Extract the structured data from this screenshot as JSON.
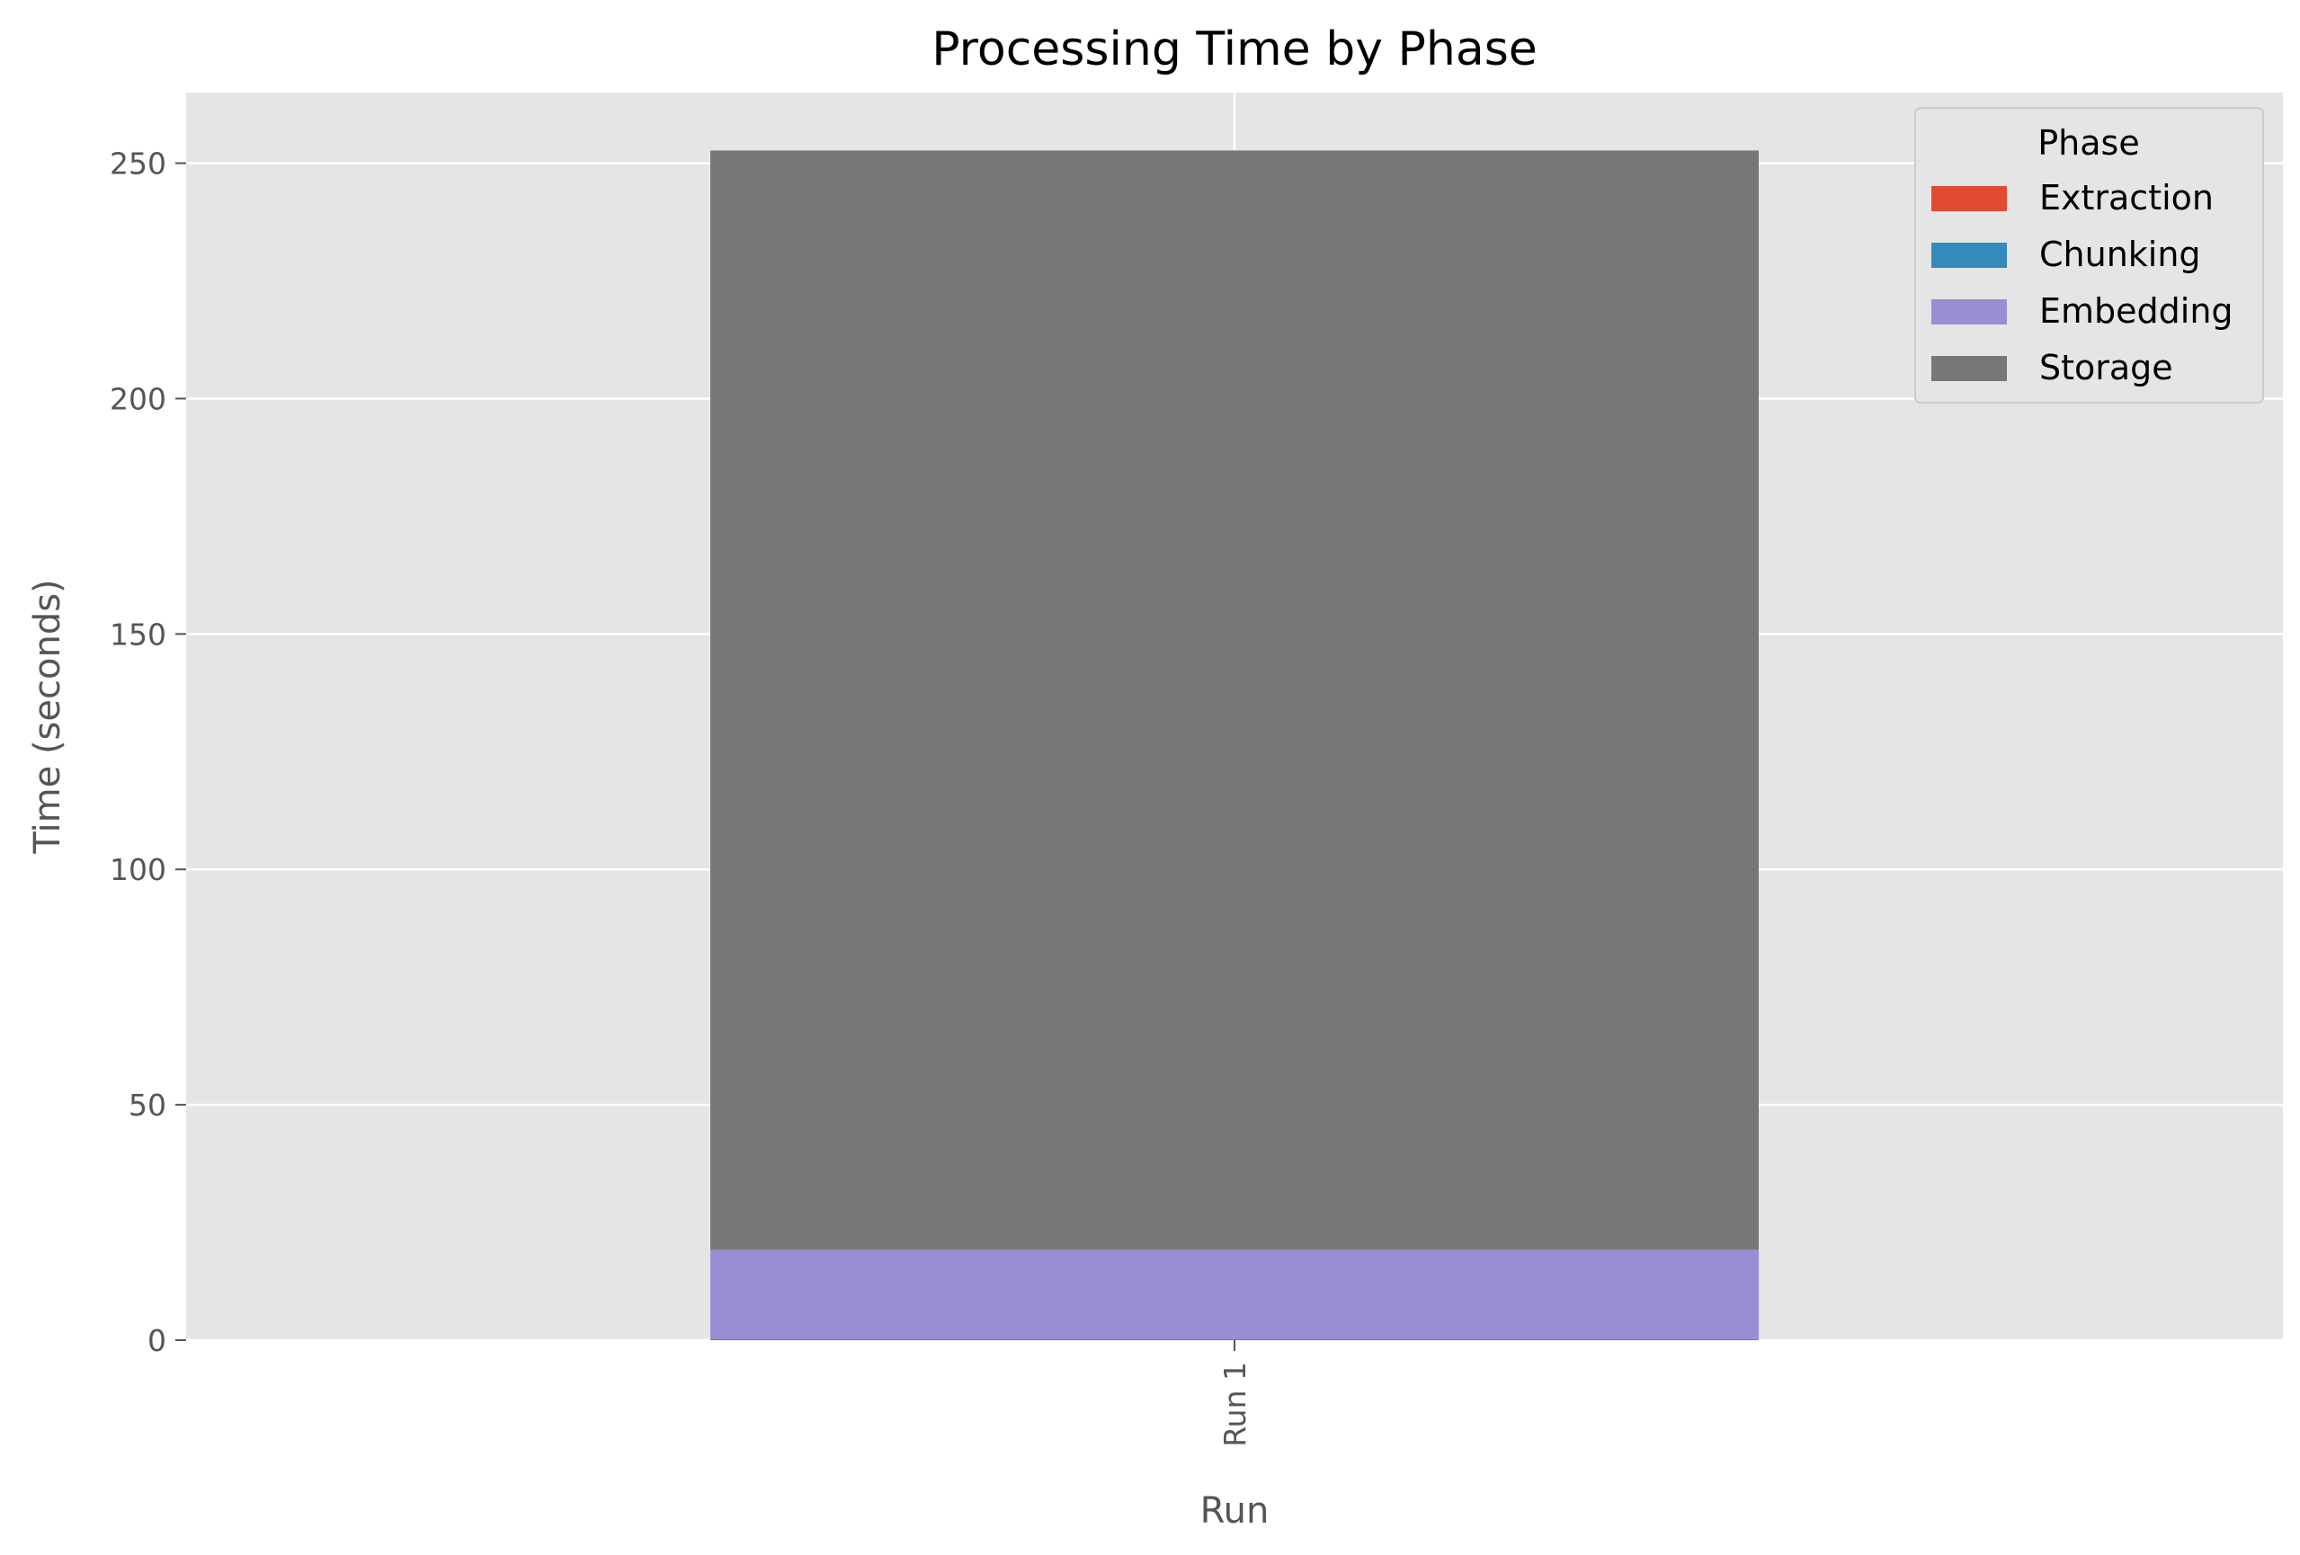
{
  "chart_data": {
    "type": "bar",
    "stacked": true,
    "title": "Processing Time by Phase",
    "xlabel": "Run",
    "ylabel": "Time (seconds)",
    "categories": [
      "Run 1"
    ],
    "ylim": [
      0,
      265
    ],
    "yticks": [
      0,
      50,
      100,
      150,
      200,
      250
    ],
    "grid": true,
    "legend": {
      "title": "Phase",
      "placement": "top-right"
    },
    "series": [
      {
        "name": "Extraction",
        "values": [
          0.1
        ],
        "color": "#E24A33"
      },
      {
        "name": "Chunking",
        "values": [
          0.1
        ],
        "color": "#348ABD"
      },
      {
        "name": "Embedding",
        "values": [
          19
        ],
        "color": "#988ED5"
      },
      {
        "name": "Storage",
        "values": [
          233.5
        ],
        "color": "#777777"
      }
    ]
  }
}
